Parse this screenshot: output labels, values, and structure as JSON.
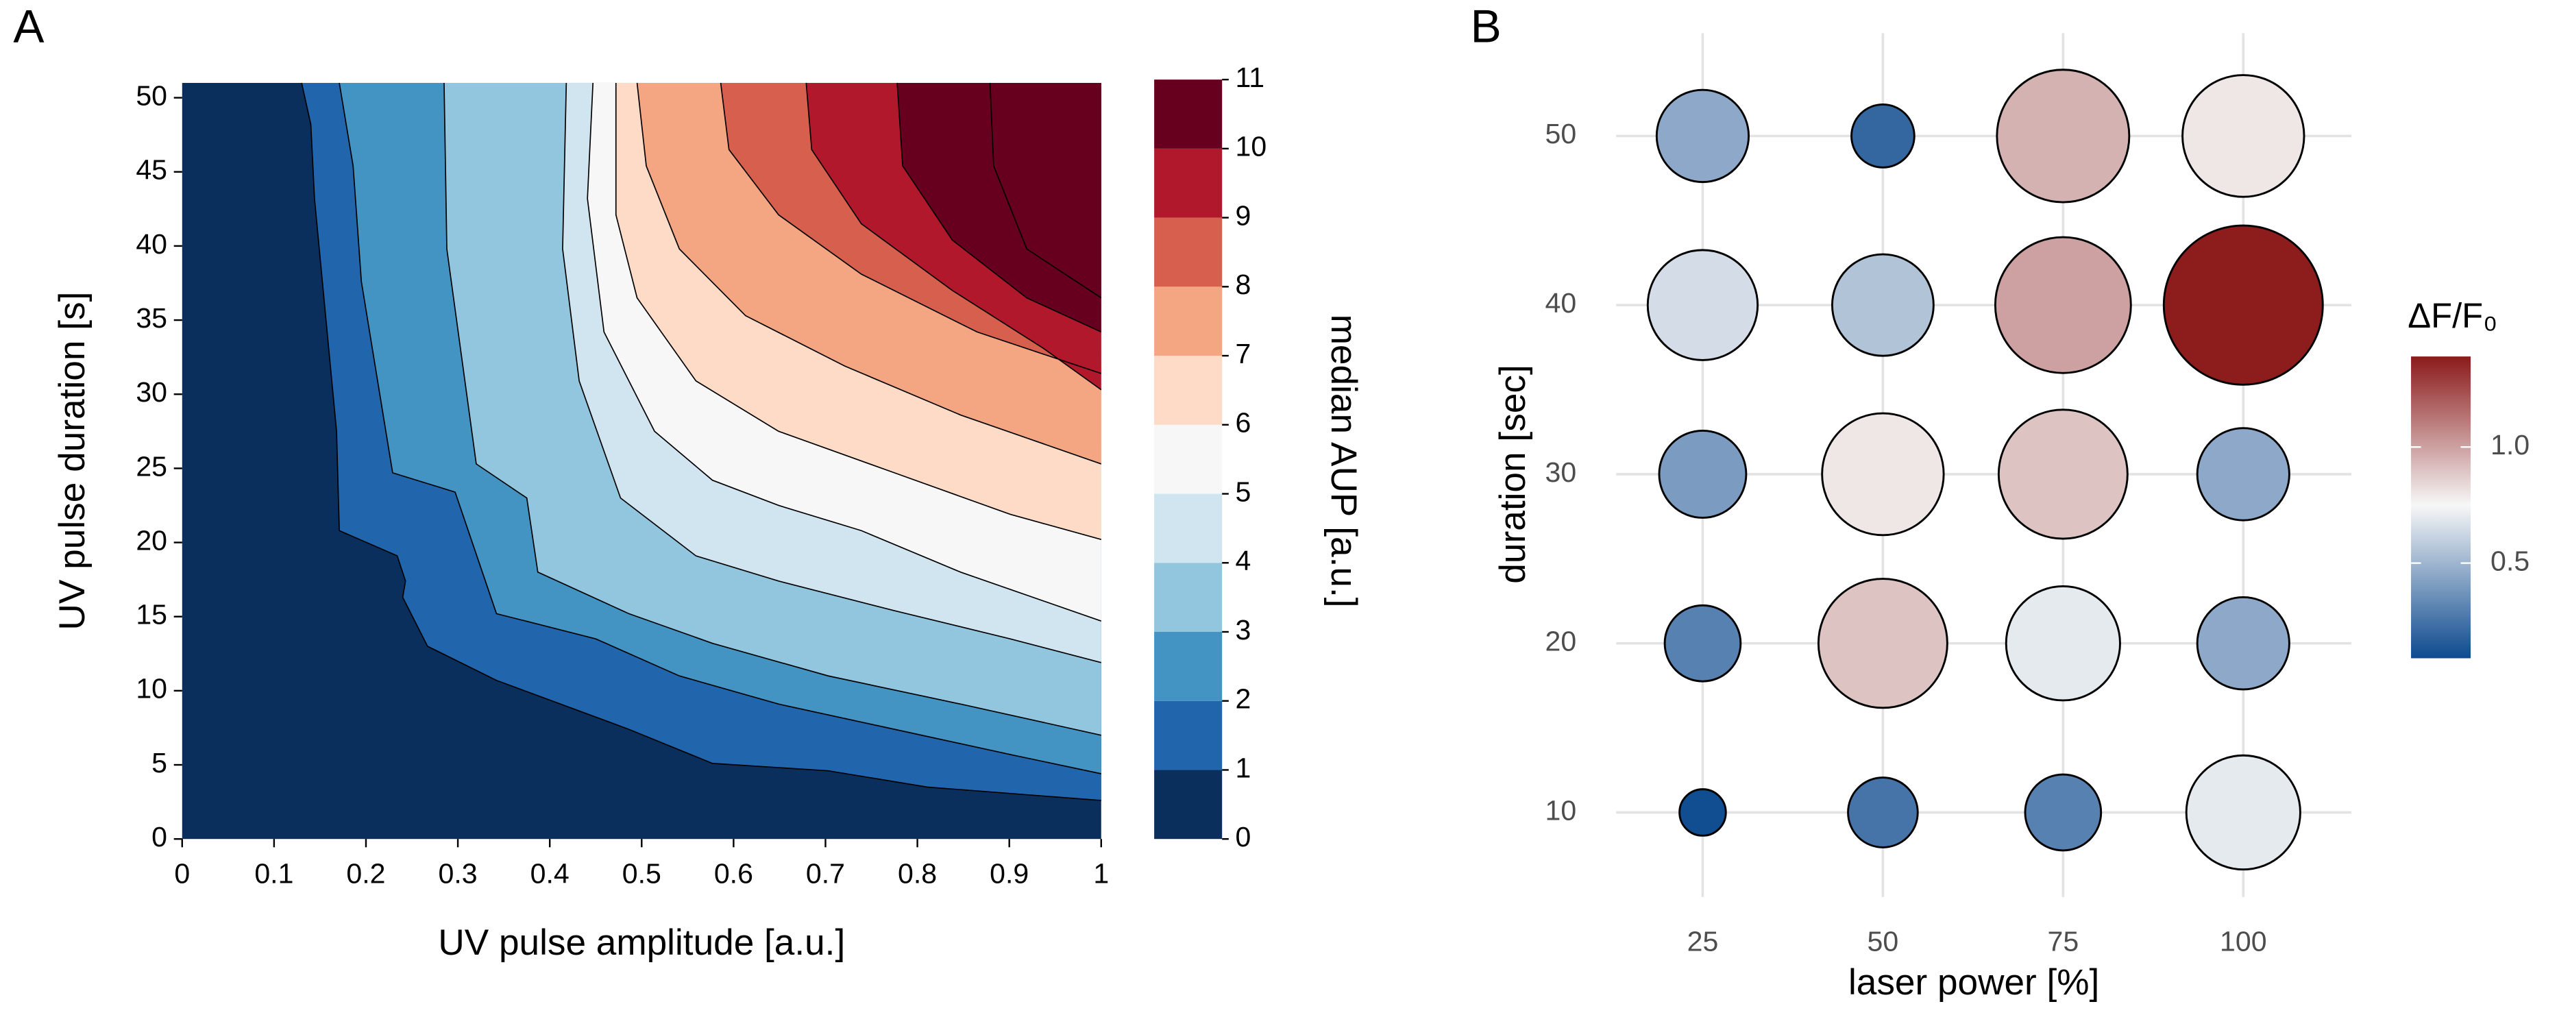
{
  "chart_data": [
    {
      "type": "contour",
      "panel_label": "A",
      "xlabel": "UV pulse amplitude [a.u.]",
      "ylabel": "UV pulse duration [s]",
      "xlim": [
        0,
        1
      ],
      "ylim": [
        0,
        51
      ],
      "xticks": [
        0,
        0.1,
        0.2,
        0.3,
        0.4,
        0.5,
        0.6,
        0.7,
        0.8,
        0.9,
        1
      ],
      "yticks": [
        0,
        5,
        10,
        15,
        20,
        25,
        30,
        35,
        40,
        45,
        50
      ],
      "colorbar_label": "median AUP [a.u.]",
      "levels": [
        0,
        1,
        2,
        3,
        4,
        5,
        6,
        7,
        8,
        9,
        10,
        11
      ],
      "colors": [
        "#0a2f5c",
        "#2166ac",
        "#4393c3",
        "#92c5de",
        "#d1e5f0",
        "#f7f7f7",
        "#fddbc7",
        "#f4a582",
        "#d6604d",
        "#b2182b",
        "#67001f"
      ],
      "contours": [
        {
          "level": 1,
          "x": [
            0.13,
            0.14,
            0.144,
            0.168,
            0.171,
            0.234,
            0.243,
            0.24,
            0.267,
            0.342,
            0.486,
            0.577,
            0.703,
            0.811,
            1
          ],
          "y": [
            51,
            48.2,
            43.2,
            27.5,
            20.8,
            19.1,
            17.4,
            16.3,
            13,
            10.7,
            7.4,
            5.1,
            4.6,
            3.5,
            2.6
          ]
        },
        {
          "level": 2,
          "x": [
            0.171,
            0.186,
            0.195,
            0.229,
            0.297,
            0.342,
            0.45,
            0.541,
            0.649,
            0.775,
            0.901,
            1
          ],
          "y": [
            51,
            45.4,
            37.6,
            24.7,
            23.4,
            15.2,
            13.5,
            11,
            9.1,
            7.4,
            5.7,
            4.4
          ]
        },
        {
          "level": 3,
          "x": [
            0.285,
            0.288,
            0.32,
            0.375,
            0.387,
            0.486,
            0.577,
            0.703,
            0.847,
            1
          ],
          "y": [
            51,
            39.8,
            25.3,
            23,
            18,
            15.2,
            13.2,
            11,
            9.1,
            7
          ]
        },
        {
          "level": 4,
          "x": [
            0.418,
            0.414,
            0.432,
            0.477,
            0.559,
            0.649,
            0.775,
            0.901,
            1
          ],
          "y": [
            51,
            39.8,
            30.9,
            23,
            19.1,
            17.4,
            15.4,
            13.5,
            11.9
          ]
        },
        {
          "level": 5,
          "x": [
            0.447,
            0.441,
            0.459,
            0.514,
            0.577,
            0.649,
            0.739,
            0.847,
            1
          ],
          "y": [
            51,
            43.2,
            34.2,
            27.5,
            24.2,
            22.5,
            20.8,
            18,
            14.7
          ]
        },
        {
          "level": 6,
          "x": [
            0.472,
            0.472,
            0.495,
            0.559,
            0.649,
            0.775,
            0.901,
            1
          ],
          "y": [
            51,
            42.1,
            36.5,
            30.9,
            27.5,
            24.7,
            21.9,
            20.2
          ]
        },
        {
          "level": 7,
          "x": [
            0.495,
            0.505,
            0.541,
            0.613,
            0.721,
            0.847,
            1
          ],
          "y": [
            51,
            45.4,
            39.8,
            35.3,
            31.9,
            28.6,
            25.3
          ]
        },
        {
          "level": 8,
          "x": [
            0.586,
            0.595,
            0.649,
            0.739,
            0.865,
            1
          ],
          "y": [
            51,
            46.5,
            42.1,
            38.1,
            34.2,
            31.4
          ]
        },
        {
          "level": 9,
          "x": [
            0.679,
            0.685,
            0.739,
            0.838,
            0.937,
            1
          ],
          "y": [
            51,
            46.5,
            41.5,
            37,
            33.1,
            30.3
          ]
        },
        {
          "level": 10,
          "x": [
            0.778,
            0.784,
            0.838,
            0.919,
            1
          ],
          "y": [
            51,
            45.4,
            40.4,
            36.5,
            34.2
          ]
        },
        {
          "level": 11,
          "x": [
            0.879,
            0.883,
            0.919,
            1
          ],
          "y": [
            51,
            45.4,
            39.8,
            36.5
          ]
        }
      ]
    },
    {
      "type": "bubble",
      "panel_label": "B",
      "xlabel": "laser power [%]",
      "ylabel": "duration [sec]",
      "legend_title": "ΔF/F₀",
      "xlim": [
        13,
        115
      ],
      "ylim": [
        5,
        55
      ],
      "xticks": [
        25,
        50,
        75,
        100
      ],
      "yticks": [
        10,
        20,
        30,
        40,
        50
      ],
      "grid": true,
      "x": [
        25,
        50,
        75,
        100,
        25,
        50,
        75,
        100,
        25,
        50,
        75,
        100,
        25,
        50,
        75,
        100,
        25,
        50,
        75,
        100
      ],
      "y": [
        50,
        50,
        50,
        50,
        40,
        40,
        40,
        40,
        30,
        30,
        30,
        30,
        20,
        20,
        20,
        20,
        10,
        10,
        10,
        10
      ],
      "values": [
        0.45,
        0.2,
        0.95,
        0.8,
        0.65,
        0.55,
        1.0,
        1.38,
        0.4,
        0.8,
        0.9,
        0.45,
        0.3,
        0.9,
        0.7,
        0.45,
        0.1,
        0.25,
        0.3,
        0.7
      ],
      "clim": [
        0.09,
        1.39
      ],
      "cmid": 0.75,
      "colors": [
        "#0d4a8f",
        "#f7f7f7",
        "#8b1a1a"
      ],
      "cticks": [
        0.5,
        {
          "value": 1,
          "label": "1.0"
        }
      ]
    }
  ]
}
